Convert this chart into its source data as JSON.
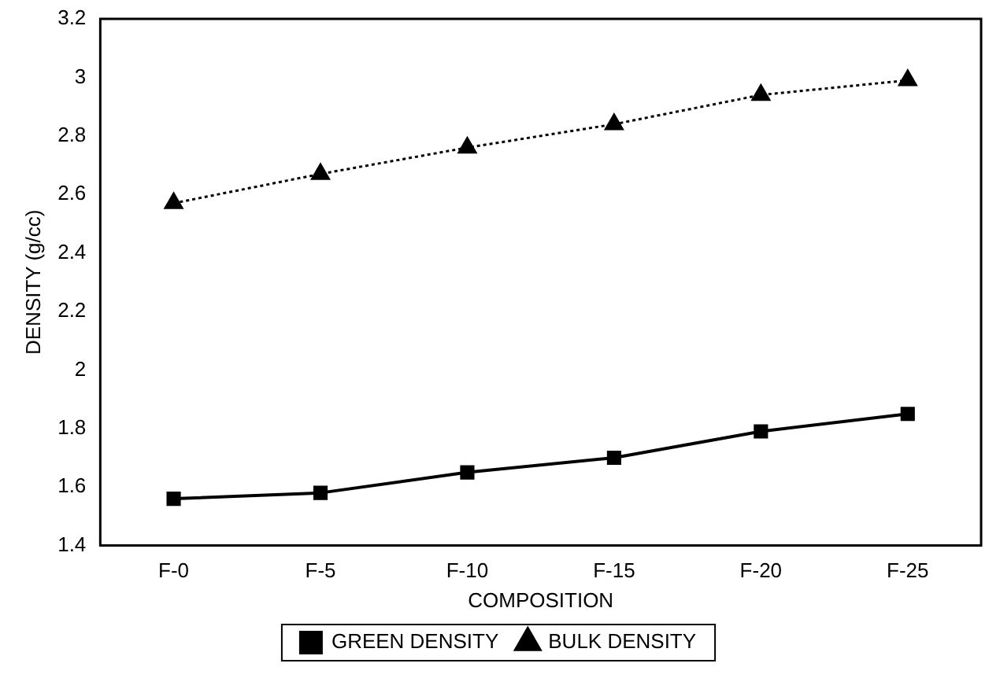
{
  "chart_data": {
    "type": "line",
    "xlabel": "COMPOSITION",
    "ylabel": "DENSITY (g/cc)",
    "categories": [
      "F-0",
      "F-5",
      "F-10",
      "F-15",
      "F-20",
      "F-25"
    ],
    "series": [
      {
        "name": "GREEN DENSITY",
        "color": "#000000",
        "values": [
          1.56,
          1.58,
          1.65,
          1.7,
          1.79,
          1.85
        ],
        "marker": "square",
        "line_style": "solid"
      },
      {
        "name": "BULK DENSITY",
        "color": "#000000",
        "values": [
          2.57,
          2.67,
          2.76,
          2.84,
          2.94,
          2.99
        ],
        "marker": "triangle",
        "line_style": "dotted"
      }
    ],
    "ylim": [
      1.4,
      3.2
    ],
    "yticks": [
      1.4,
      1.6,
      1.8,
      2,
      2.2,
      2.4,
      2.6,
      2.8,
      3,
      3.2
    ],
    "grid": false,
    "legend": "bottom"
  }
}
